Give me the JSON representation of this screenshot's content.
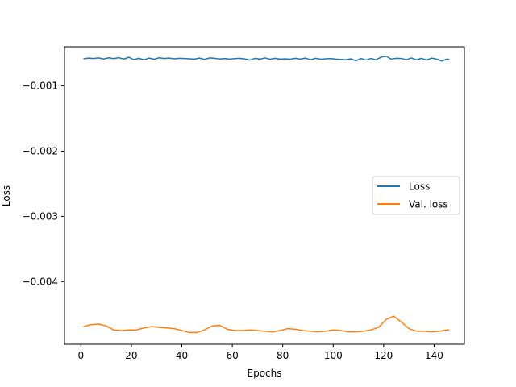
{
  "chart_data": {
    "type": "line",
    "title": "",
    "xlabel": "Epochs",
    "ylabel": "Loss",
    "xlim": [
      -6.5,
      152
    ],
    "ylim": [
      -0.00496,
      -0.0004
    ],
    "xticks": [
      0,
      20,
      40,
      60,
      80,
      100,
      120,
      140
    ],
    "yticks": [
      -0.004,
      -0.003,
      -0.002,
      -0.001
    ],
    "xtick_labels": [
      "0",
      "20",
      "40",
      "60",
      "80",
      "100",
      "120",
      "140"
    ],
    "ytick_labels": [
      "−0.004",
      "−0.003",
      "−0.002",
      "−0.001"
    ],
    "grid": false,
    "legend_position": "center-right",
    "series": [
      {
        "name": "Loss",
        "color": "#1f77b4",
        "x": [
          1,
          3,
          5,
          7,
          9,
          11,
          13,
          15,
          17,
          19,
          21,
          23,
          25,
          27,
          29,
          31,
          33,
          35,
          37,
          39,
          41,
          43,
          45,
          47,
          49,
          51,
          53,
          55,
          57,
          59,
          61,
          63,
          65,
          67,
          69,
          71,
          73,
          75,
          77,
          79,
          81,
          83,
          85,
          87,
          89,
          91,
          93,
          95,
          97,
          99,
          101,
          103,
          105,
          107,
          109,
          111,
          113,
          115,
          117,
          119,
          121,
          123,
          125,
          127,
          129,
          131,
          133,
          135,
          137,
          139,
          141,
          143,
          145,
          146
        ],
        "y": [
          -0.000585,
          -0.000575,
          -0.00058,
          -0.000572,
          -0.000588,
          -0.00057,
          -0.000582,
          -0.000568,
          -0.00059,
          -0.000562,
          -0.000598,
          -0.000578,
          -0.0006,
          -0.000575,
          -0.000592,
          -0.00057,
          -0.00058,
          -0.000575,
          -0.000585,
          -0.000578,
          -0.00058,
          -0.000585,
          -0.00059,
          -0.000575,
          -0.000595,
          -0.000572,
          -0.000578,
          -0.000588,
          -0.00058,
          -0.00059,
          -0.000582,
          -0.000578,
          -0.000588,
          -0.000605,
          -0.000578,
          -0.00059,
          -0.000572,
          -0.000592,
          -0.000578,
          -0.00059,
          -0.000585,
          -0.000592,
          -0.000578,
          -0.00059,
          -0.000575,
          -0.0006,
          -0.000578,
          -0.000592,
          -0.000585,
          -0.00058,
          -0.00059,
          -0.000595,
          -0.0006,
          -0.000585,
          -0.000615,
          -0.00058,
          -0.000605,
          -0.00058,
          -0.0006,
          -0.00056,
          -0.000545,
          -0.00059,
          -0.000578,
          -0.00058,
          -0.0006,
          -0.000572,
          -0.000602,
          -0.000578,
          -0.000605,
          -0.000575,
          -0.00059,
          -0.00062,
          -0.00059,
          -0.000595
        ]
      },
      {
        "name": "Val. loss",
        "color": "#ff7f0e",
        "x": [
          1,
          4,
          7,
          10,
          13,
          16,
          19,
          22,
          25,
          28,
          31,
          34,
          37,
          40,
          43,
          46,
          49,
          52,
          55,
          58,
          61,
          64,
          67,
          70,
          73,
          76,
          79,
          82,
          85,
          88,
          91,
          94,
          97,
          100,
          103,
          106,
          109,
          112,
          115,
          118,
          121,
          124,
          127,
          130,
          133,
          136,
          139,
          142,
          145,
          146
        ],
        "y": [
          -0.00469,
          -0.00466,
          -0.00465,
          -0.00468,
          -0.00474,
          -0.00475,
          -0.00474,
          -0.00474,
          -0.00471,
          -0.00469,
          -0.0047,
          -0.00471,
          -0.00472,
          -0.00475,
          -0.00478,
          -0.00478,
          -0.00474,
          -0.00468,
          -0.00467,
          -0.00473,
          -0.00475,
          -0.00475,
          -0.00474,
          -0.00475,
          -0.00476,
          -0.00477,
          -0.00475,
          -0.00472,
          -0.00473,
          -0.00475,
          -0.00476,
          -0.00477,
          -0.00476,
          -0.00474,
          -0.00475,
          -0.00477,
          -0.00477,
          -0.00476,
          -0.00474,
          -0.0047,
          -0.00458,
          -0.00453,
          -0.00462,
          -0.00472,
          -0.00476,
          -0.00476,
          -0.00477,
          -0.00476,
          -0.00474,
          -0.00474
        ]
      }
    ]
  }
}
